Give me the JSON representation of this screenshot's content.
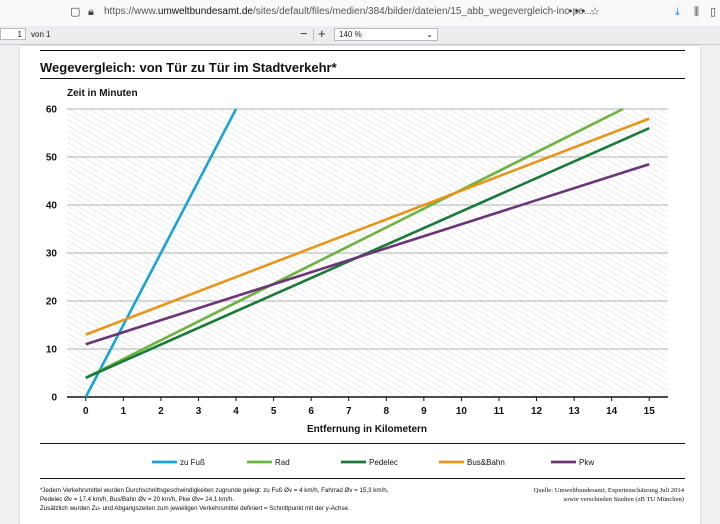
{
  "browser": {
    "url_prefix": "https://www.",
    "url_domain": "umweltbundesamt.de",
    "url_path": "/sites/default/files/medien/384/bilder/dateien/15_abb_wegevergleich-inc-pe..."
  },
  "pdf_toolbar": {
    "page_input": "1",
    "page_count": "von 1",
    "zoom_out": "−",
    "zoom_in": "+",
    "zoom": "140 %"
  },
  "document": {
    "title": "Wegevergleich: von Tür zu Tür im Stadtverkehr*",
    "footnote_1": "*Jedem Verkehrsmittel wurden Durchschnittsgeschwindigkeiten zugrunde gelegt: zu Fuß Øv = 4 km/h, Fahrrad Øv = 15,3 km/h,",
    "footnote_2": "Pedelec Øv = 17,4 km/h, Bus/Bahn Øv = 20 km/h, Pkw Øv= 24,1 km/h.",
    "footnote_3": "Zusätzlich wurden Zu- und Abgangszeiten zum jeweiligen Verkehrsmittel definiert = Schnittpunkt mit der y-Achse.",
    "source_1": "Quelle: Umweltbundesamt, Expertenschätzung Juli 2014",
    "source_2": "sowie verschieden Studien (zB TU München)"
  },
  "chart_data": {
    "type": "line",
    "ylabel": "Zeit in Minuten",
    "xlabel": "Entfernung in Kilometern",
    "xlim": [
      -0.5,
      15.5
    ],
    "ylim": [
      0,
      60
    ],
    "x_ticks": [
      0,
      1,
      2,
      3,
      4,
      5,
      6,
      7,
      8,
      9,
      10,
      11,
      12,
      13,
      14,
      15
    ],
    "y_ticks": [
      0,
      10,
      20,
      30,
      40,
      50,
      60
    ],
    "grid": true,
    "legend_position": "bottom",
    "series": [
      {
        "name": "zu Fuß",
        "color": "#1aa3d4",
        "x": [
          0,
          4
        ],
        "y": [
          0,
          60
        ]
      },
      {
        "name": "Rad",
        "color": "#6db33f",
        "x": [
          0,
          14.3
        ],
        "y": [
          4,
          60
        ]
      },
      {
        "name": "Pedelec",
        "color": "#1a7a38",
        "x": [
          0,
          15
        ],
        "y": [
          4,
          56
        ]
      },
      {
        "name": "Bus&Bahn",
        "color": "#e8961a",
        "x": [
          0,
          15
        ],
        "y": [
          13,
          58
        ]
      },
      {
        "name": "Pkw",
        "color": "#6b3577",
        "x": [
          0,
          15
        ],
        "y": [
          11,
          48.5
        ]
      }
    ]
  }
}
